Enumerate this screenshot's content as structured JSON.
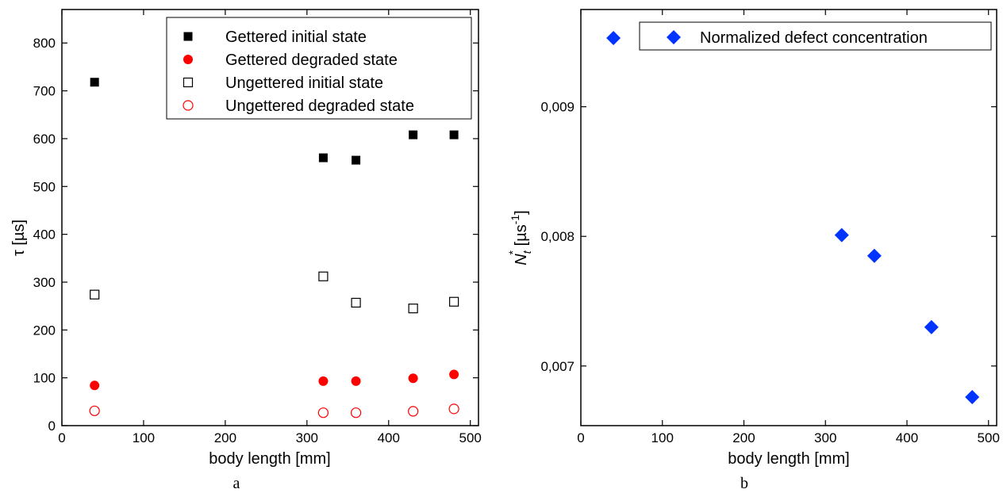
{
  "chart_data": [
    {
      "type": "scatter",
      "panel_label": "a",
      "xlabel": "body length [mm]",
      "ylabel": "τ [µs]",
      "xlim": [
        0,
        510
      ],
      "ylim": [
        0,
        870
      ],
      "xticks": [
        0,
        100,
        200,
        300,
        400,
        500
      ],
      "yticks": [
        0,
        100,
        200,
        300,
        400,
        500,
        600,
        700,
        800
      ],
      "legend_position": "top-right",
      "grid": false,
      "series": [
        {
          "name": "Gettered initial state",
          "marker": "square-filled",
          "color": "#000000",
          "points": [
            {
              "x": 40,
              "y": 718
            },
            {
              "x": 320,
              "y": 560
            },
            {
              "x": 360,
              "y": 555
            },
            {
              "x": 430,
              "y": 608
            },
            {
              "x": 480,
              "y": 608
            }
          ]
        },
        {
          "name": "Gettered degraded state",
          "marker": "circle-filled",
          "color": "#ff0000",
          "points": [
            {
              "x": 40,
              "y": 84
            },
            {
              "x": 320,
              "y": 93
            },
            {
              "x": 360,
              "y": 93
            },
            {
              "x": 430,
              "y": 99
            },
            {
              "x": 480,
              "y": 107
            }
          ]
        },
        {
          "name": "Ungettered initial state",
          "marker": "square-open",
          "color": "#000000",
          "points": [
            {
              "x": 40,
              "y": 274
            },
            {
              "x": 320,
              "y": 312
            },
            {
              "x": 360,
              "y": 257
            },
            {
              "x": 430,
              "y": 245
            },
            {
              "x": 480,
              "y": 259
            }
          ]
        },
        {
          "name": "Ungettered degraded state",
          "marker": "circle-open",
          "color": "#ff0000",
          "points": [
            {
              "x": 40,
              "y": 31
            },
            {
              "x": 320,
              "y": 27
            },
            {
              "x": 360,
              "y": 27
            },
            {
              "x": 430,
              "y": 30
            },
            {
              "x": 480,
              "y": 35
            }
          ]
        }
      ]
    },
    {
      "type": "scatter",
      "panel_label": "b",
      "xlabel": "body length [mm]",
      "ylabel_main": "N",
      "ylabel_sub": "t",
      "ylabel_sup": "*",
      "ylabel_unit_open": " [µs",
      "ylabel_unit_sup": "-1",
      "ylabel_unit_close": "]",
      "xlim": [
        0,
        510
      ],
      "ylim": [
        0.00654,
        0.00975
      ],
      "xticks": [
        0,
        100,
        200,
        300,
        400,
        500
      ],
      "yticks": [
        0.007,
        0.008,
        0.009
      ],
      "ytick_labels": [
        "0,007",
        "0,008",
        "0,009"
      ],
      "legend_position": "top-right",
      "grid": false,
      "series": [
        {
          "name": "Normalized defect concentration",
          "marker": "diamond-filled",
          "color": "#0033ff",
          "points": [
            {
              "x": 40,
              "y": 0.00953
            },
            {
              "x": 320,
              "y": 0.00801
            },
            {
              "x": 360,
              "y": 0.00785
            },
            {
              "x": 430,
              "y": 0.0073
            },
            {
              "x": 480,
              "y": 0.00676
            }
          ]
        }
      ]
    }
  ]
}
